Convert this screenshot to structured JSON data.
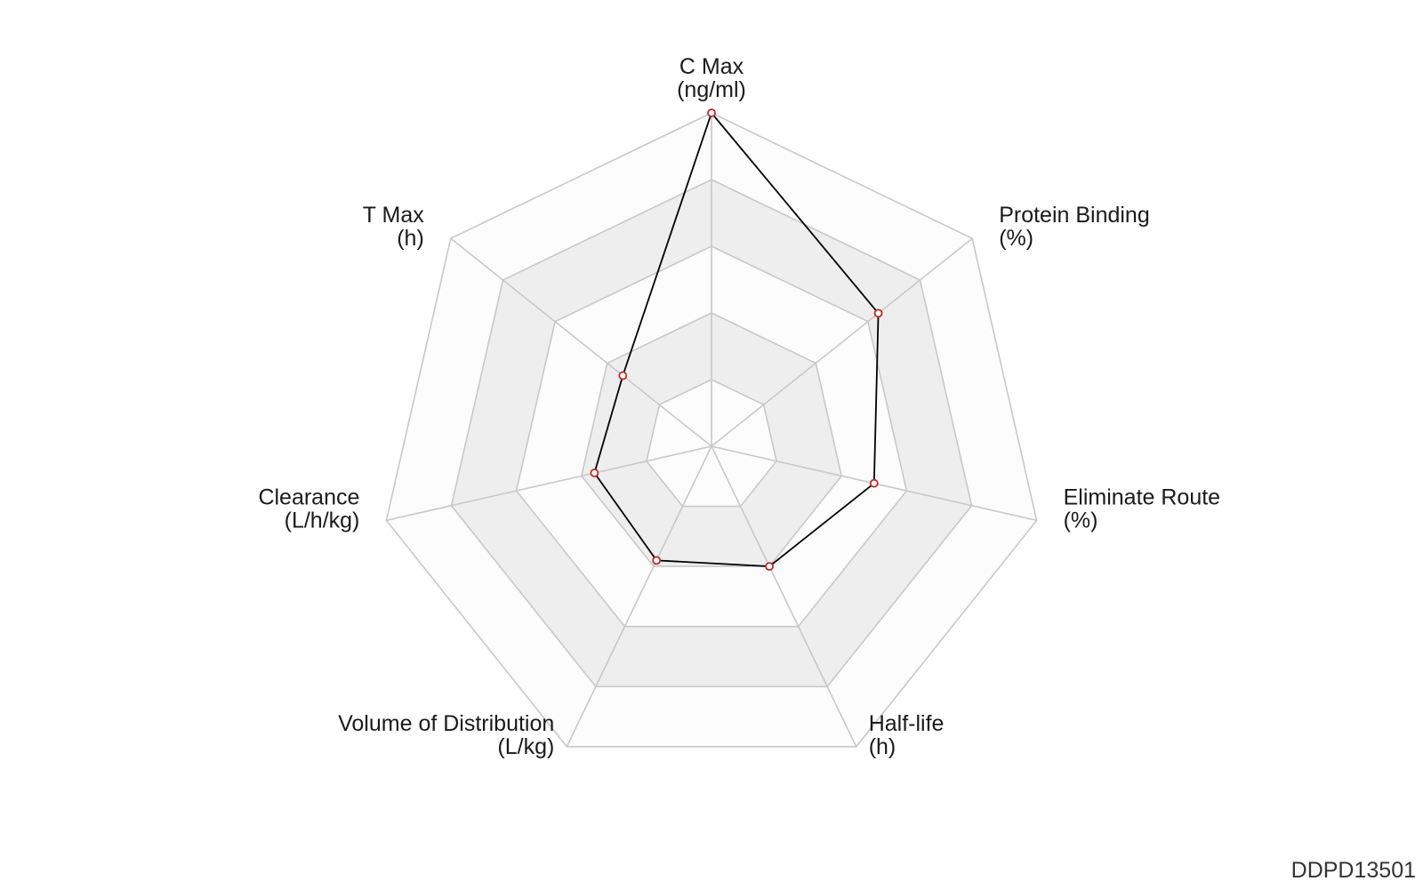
{
  "chart_data": {
    "type": "radar",
    "levels": 5,
    "max": 5,
    "axes": [
      {
        "name": "C Max",
        "unit": "(ng/ml)",
        "value": 5.0
      },
      {
        "name": "Protein Binding",
        "unit": "(%)",
        "value": 3.2
      },
      {
        "name": "Eliminate Route",
        "unit": "(%)",
        "value": 2.5
      },
      {
        "name": "Half-life",
        "unit": "(h)",
        "value": 2.0
      },
      {
        "name": "Volume of Distribution",
        "unit": "(L/kg)",
        "value": 1.9
      },
      {
        "name": "Clearance",
        "unit": "(L/h/kg)",
        "value": 1.8
      },
      {
        "name": "T Max",
        "unit": "(h)",
        "value": 1.7
      }
    ],
    "colors": {
      "band_light": "#fcfcfc",
      "band_dark": "#eeeeee",
      "grid": "#c8c8c8",
      "line": "#000000",
      "point_stroke": "#c0282a",
      "point_fill": "#ffffff"
    }
  },
  "watermark": "DDPD13501"
}
